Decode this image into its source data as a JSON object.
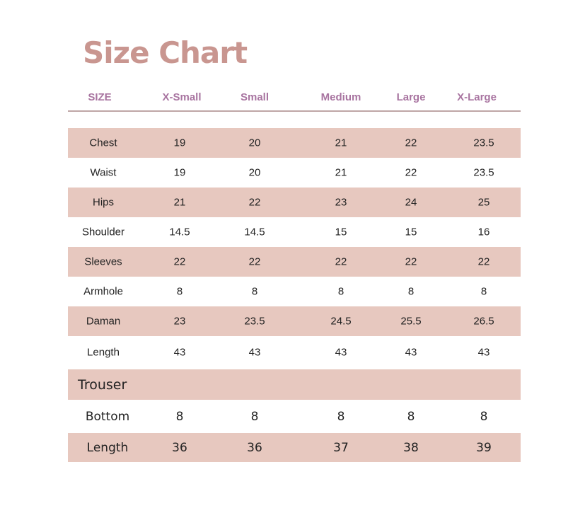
{
  "title": "Size Chart",
  "colors": {
    "title": "#c99690",
    "header": "#a874a0",
    "band": "#e7c8bf"
  },
  "headers": [
    "SIZE",
    "X-Small",
    "Small",
    "Medium",
    "Large",
    "X-Large"
  ],
  "rows": [
    {
      "label": "Chest",
      "values": [
        "19",
        "20",
        "21",
        "22",
        "23.5"
      ]
    },
    {
      "label": "Waist",
      "values": [
        "19",
        "20",
        "21",
        "22",
        "23.5"
      ]
    },
    {
      "label": "Hips",
      "values": [
        "21",
        "22",
        "23",
        "24",
        "25"
      ]
    },
    {
      "label": "Shoulder",
      "values": [
        "14.5",
        "14.5",
        "15",
        "15",
        "16"
      ]
    },
    {
      "label": "Sleeves",
      "values": [
        "22",
        "22",
        "22",
        "22",
        "22"
      ]
    },
    {
      "label": "Armhole",
      "values": [
        "8",
        "8",
        "8",
        "8",
        "8"
      ]
    },
    {
      "label": "Daman",
      "values": [
        "23",
        "23.5",
        "24.5",
        "25.5",
        "26.5"
      ]
    },
    {
      "label": "Length",
      "values": [
        "43",
        "43",
        "43",
        "43",
        "43"
      ]
    }
  ],
  "trouser": {
    "section": "Trouser",
    "rows": [
      {
        "label": "Bottom",
        "values": [
          "8",
          "8",
          "8",
          "8",
          "8"
        ]
      },
      {
        "label": "Length",
        "values": [
          "36",
          "36",
          "37",
          "38",
          "39"
        ]
      }
    ]
  }
}
